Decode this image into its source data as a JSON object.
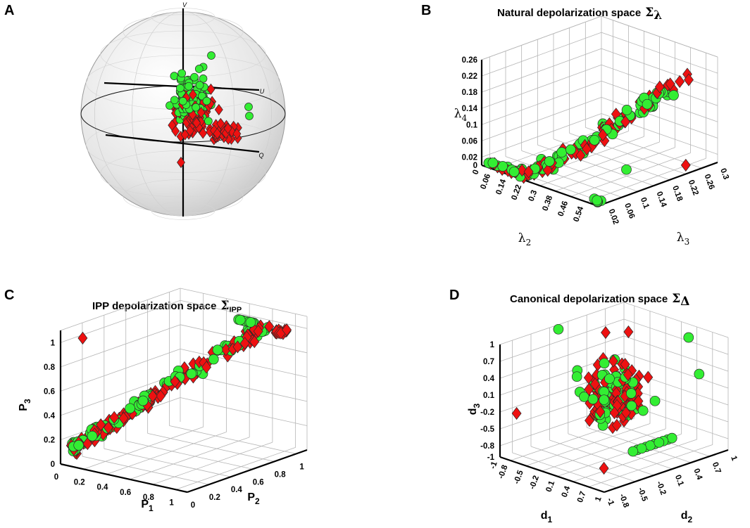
{
  "colors": {
    "green": "#33ee33",
    "red": "#ee1111",
    "marker_edge": "#2a2a2a"
  },
  "chart_data": [
    {
      "panel": "A",
      "type": "scatter",
      "subtype": "poincare-sphere-3d",
      "title": "",
      "axis_labels": {
        "v": "V",
        "u": "U",
        "q": "Q"
      },
      "series": [
        {
          "name": "green-circles",
          "marker": "circle",
          "color": "#33ee33"
        },
        {
          "name": "red-diamonds",
          "marker": "diamond",
          "color": "#ee1111"
        }
      ]
    },
    {
      "panel": "B",
      "type": "scatter",
      "subtype": "3d",
      "title": "Natural depolarization space",
      "title_symbol": "Σ",
      "title_sub": "λ",
      "xlabel": "λ2",
      "ylabel": "λ3",
      "zlabel": "λ4",
      "xlabel_base": "λ",
      "xlabel_sub": "2",
      "ylabel_base": "λ",
      "ylabel_sub": "3",
      "zlabel_base": "λ",
      "zlabel_sub": "4",
      "xticks": [
        "0",
        "0.06",
        "0.14",
        "0.22",
        "0.3",
        "0.38",
        "0.46",
        "0.54"
      ],
      "yticks": [
        "0.02",
        "0.06",
        "0.1",
        "0.14",
        "0.18",
        "0.22",
        "0.26",
        "0.3"
      ],
      "zticks": [
        "0",
        "0.02",
        "0.06",
        "0.1",
        "0.14",
        "0.18",
        "0.22",
        "0.26"
      ],
      "xlim": [
        0,
        0.6
      ],
      "ylim": [
        0,
        0.3
      ],
      "zlim": [
        0,
        0.26
      ],
      "series": [
        {
          "name": "green-circles",
          "marker": "circle",
          "color": "#33ee33"
        },
        {
          "name": "red-diamonds",
          "marker": "diamond",
          "color": "#ee1111"
        }
      ]
    },
    {
      "panel": "C",
      "type": "scatter",
      "subtype": "3d",
      "title": "IPP depolarization space",
      "title_symbol": "Σ",
      "title_sub": "IPP",
      "xlabel": "P1",
      "ylabel": "P2",
      "zlabel": "P3",
      "xlabel_base": "P",
      "xlabel_sub": "1",
      "ylabel_base": "P",
      "ylabel_sub": "2",
      "zlabel_base": "P",
      "zlabel_sub": "3",
      "xticks": [
        "0",
        "0.2",
        "0.4",
        "0.6",
        "0.8",
        "1"
      ],
      "yticks": [
        "0",
        "0.2",
        "0.4",
        "0.6",
        "0.8",
        "1"
      ],
      "zticks": [
        "0",
        "0.2",
        "0.4",
        "0.6",
        "0.8",
        "1"
      ],
      "xlim": [
        0,
        1.1
      ],
      "ylim": [
        0,
        1.1
      ],
      "zlim": [
        0,
        1.1
      ],
      "series": [
        {
          "name": "green-circles",
          "marker": "circle",
          "color": "#33ee33"
        },
        {
          "name": "red-diamonds",
          "marker": "diamond",
          "color": "#ee1111"
        }
      ]
    },
    {
      "panel": "D",
      "type": "scatter",
      "subtype": "3d",
      "title": "Canonical depolarization space",
      "title_symbol": "Σ",
      "title_sub": "Δ",
      "xlabel": "d1",
      "ylabel": "d2",
      "zlabel": "d3",
      "xlabel_base": "d",
      "xlabel_sub": "1",
      "ylabel_base": "d",
      "ylabel_sub": "2",
      "zlabel_base": "d",
      "zlabel_sub": "3",
      "xticks": [
        "-1",
        "-0.8",
        "-0.5",
        "-0.2",
        "0.1",
        "0.4",
        "0.7",
        "1"
      ],
      "yticks": [
        "-1",
        "-0.8",
        "-0.5",
        "-0.2",
        "0.1",
        "0.4",
        "0.7",
        "1"
      ],
      "zticks": [
        "-1",
        "-0.8",
        "-0.5",
        "-0.2",
        "0.1",
        "0.4",
        "0.7",
        "1"
      ],
      "xlim": [
        -1,
        1
      ],
      "ylim": [
        -1,
        1
      ],
      "zlim": [
        -1,
        1
      ],
      "series": [
        {
          "name": "green-circles",
          "marker": "circle",
          "color": "#33ee33"
        },
        {
          "name": "red-diamonds",
          "marker": "diamond",
          "color": "#ee1111"
        }
      ]
    }
  ]
}
